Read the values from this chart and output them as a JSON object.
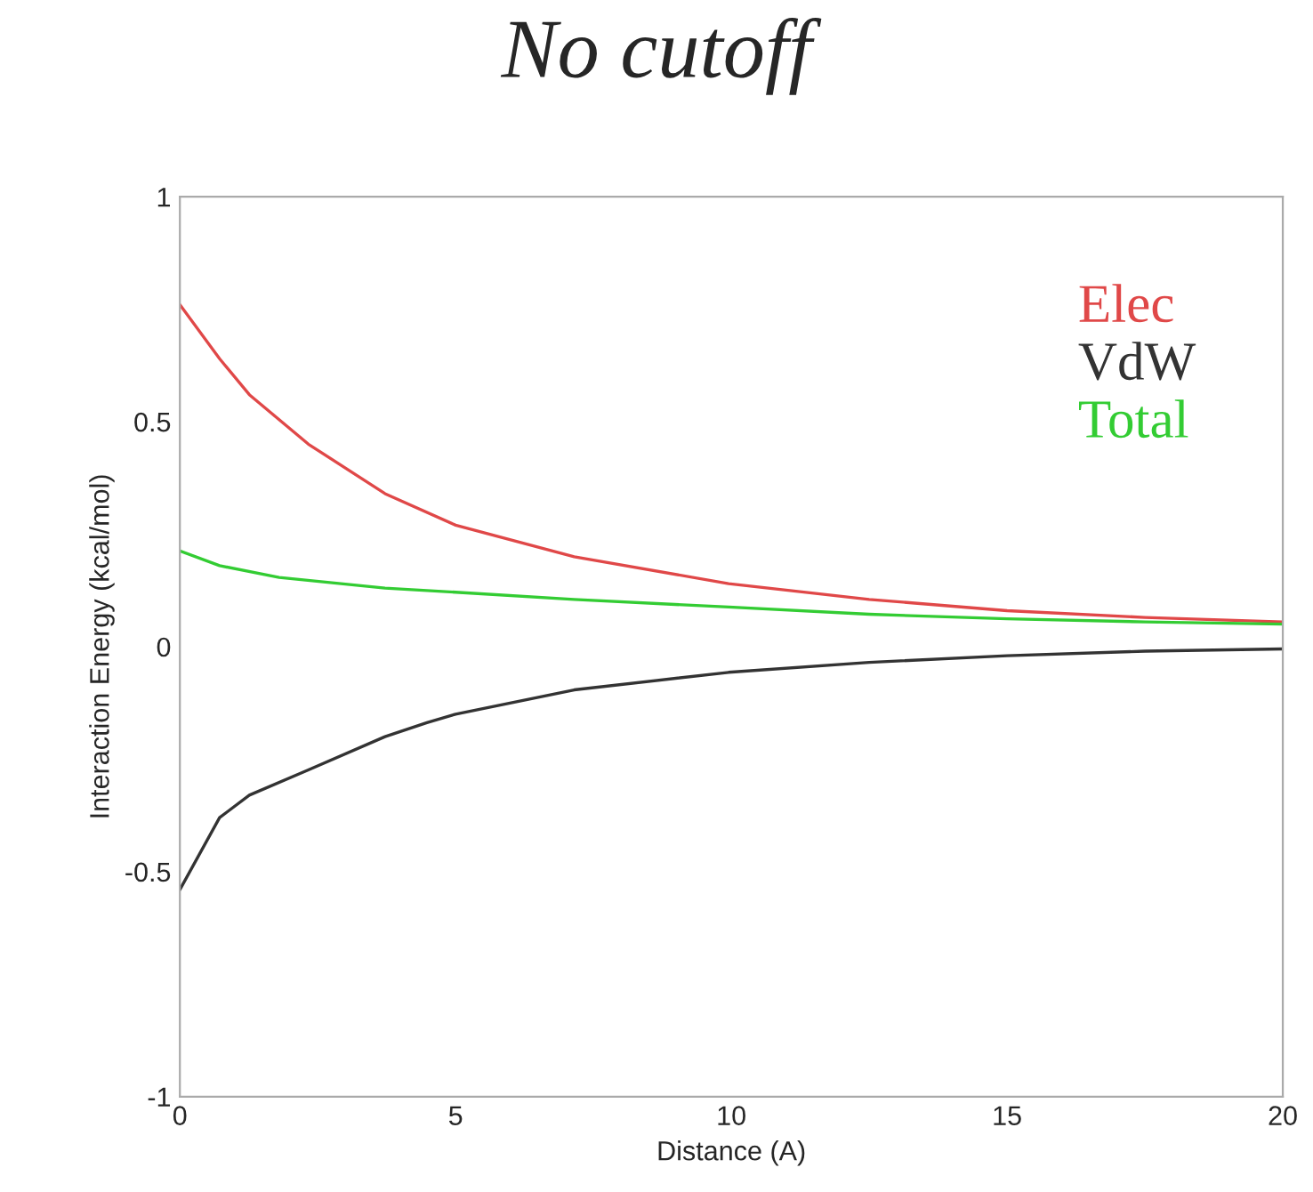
{
  "chart_data": {
    "type": "line",
    "title": "No cutoff",
    "xlabel": "Distance (A)",
    "ylabel": "Interaction Energy (kcal/mol)",
    "xlim": [
      0,
      20
    ],
    "ylim": [
      -1,
      1
    ],
    "xticks": [
      0,
      5,
      10,
      15,
      20
    ],
    "yticks": [
      -1,
      -0.5,
      0,
      0.5,
      1
    ],
    "grid": false,
    "legend": "top right",
    "marker": "none",
    "line_style": "solid",
    "series": [
      {
        "name": "Elec",
        "color": "#e04848",
        "x": [
          0,
          0.72,
          1.26,
          2.33,
          3.72,
          5,
          7.15,
          9.95,
          12.5,
          15,
          17.5,
          20
        ],
        "values": [
          0.76,
          0.64,
          0.56,
          0.45,
          0.34,
          0.27,
          0.2,
          0.14,
          0.105,
          0.08,
          0.065,
          0.055
        ]
      },
      {
        "name": "VdW",
        "color": "#333333",
        "x": [
          0,
          0.72,
          1.26,
          2.33,
          3.72,
          4.48,
          5,
          7.15,
          9.95,
          12.5,
          15,
          17.5,
          20
        ],
        "values": [
          -0.54,
          -0.38,
          -0.33,
          -0.274,
          -0.2,
          -0.169,
          -0.15,
          -0.096,
          -0.057,
          -0.035,
          -0.02,
          -0.01,
          -0.005
        ]
      },
      {
        "name": "Total",
        "color": "#33cc33",
        "x": [
          0,
          0.72,
          1.8,
          3.72,
          5,
          7.15,
          9.95,
          12.5,
          15,
          17.5,
          20
        ],
        "values": [
          0.213,
          0.18,
          0.154,
          0.13,
          0.121,
          0.105,
          0.088,
          0.072,
          0.062,
          0.055,
          0.05
        ]
      }
    ]
  }
}
